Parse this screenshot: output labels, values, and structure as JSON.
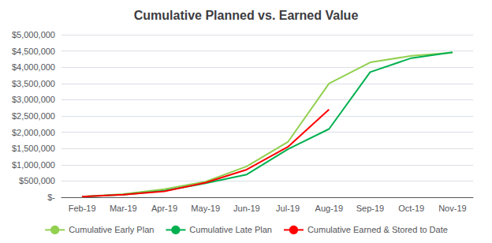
{
  "chart_data": {
    "type": "line",
    "title": "Cumulative Planned vs. Earned Value",
    "categories": [
      "Feb-19",
      "Mar-19",
      "Apr-19",
      "May-19",
      "Jun-19",
      "Jul-19",
      "Aug-19",
      "Sep-19",
      "Oct-19",
      "Nov-19"
    ],
    "series": [
      {
        "name": "Cumulative Early Plan",
        "color": "#92d050",
        "values": [
          20000,
          100000,
          250000,
          480000,
          950000,
          1700000,
          3500000,
          4150000,
          4350000,
          4450000
        ]
      },
      {
        "name": "Cumulative Late Plan",
        "color": "#00b050",
        "values": [
          20000,
          80000,
          200000,
          430000,
          700000,
          1480000,
          2100000,
          3850000,
          4280000,
          4460000
        ]
      },
      {
        "name": "Cumulative Earned & Stored to Date",
        "color": "#ff0000",
        "values": [
          20000,
          80000,
          180000,
          450000,
          850000,
          1550000,
          2700000,
          null,
          null,
          null
        ]
      }
    ],
    "ylim": [
      0,
      5000000
    ],
    "yticks": [
      {
        "value": 0,
        "label": "$-"
      },
      {
        "value": 500000,
        "label": "$500,000"
      },
      {
        "value": 1000000,
        "label": "$1,000,000"
      },
      {
        "value": 1500000,
        "label": "$1,500,000"
      },
      {
        "value": 2000000,
        "label": "$2,000,000"
      },
      {
        "value": 2500000,
        "label": "$2,500,000"
      },
      {
        "value": 3000000,
        "label": "$3,000,000"
      },
      {
        "value": 3500000,
        "label": "$3,500,000"
      },
      {
        "value": 4000000,
        "label": "$4,000,000"
      },
      {
        "value": 4500000,
        "label": "$4,500,000"
      },
      {
        "value": 5000000,
        "label": "$5,000,000"
      }
    ],
    "grid": true,
    "legend": "bottom"
  }
}
